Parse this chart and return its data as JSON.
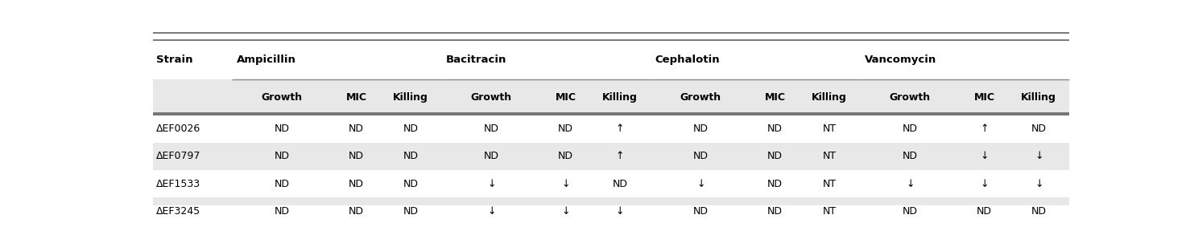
{
  "figsize": [
    14.78,
    2.88
  ],
  "dpi": 100,
  "bg_color": "#ffffff",
  "gray_row_color": "#e8e8e8",
  "white_row_color": "#ffffff",
  "subheader_bg": "#e8e8e8",
  "antibiotic_groups": [
    {
      "label": "Ampicillin",
      "subheaders": [
        "Growth",
        "MIC",
        "Killing"
      ]
    },
    {
      "label": "Bacitracin",
      "subheaders": [
        "Growth",
        "MIC",
        "Killing"
      ]
    },
    {
      "label": "Cephalotin",
      "subheaders": [
        "Growth",
        "MIC",
        "Killing"
      ]
    },
    {
      "label": "Vancomycin",
      "subheaders": [
        "Growth",
        "MIC",
        "Killing"
      ]
    }
  ],
  "strains": [
    "ΔEF0026",
    "ΔEF0797",
    "ΔEF1533",
    "ΔEF3245"
  ],
  "table_data": [
    [
      "ND",
      "ND",
      "ND",
      "ND",
      "ND",
      "↑",
      "ND",
      "ND",
      "NT",
      "ND",
      "↑",
      "ND"
    ],
    [
      "ND",
      "ND",
      "ND",
      "ND",
      "ND",
      "↑",
      "ND",
      "ND",
      "NT",
      "ND",
      "↓",
      "↓"
    ],
    [
      "ND",
      "ND",
      "ND",
      "↓",
      "↓",
      "ND",
      "↓",
      "ND",
      "NT",
      "↓",
      "↓",
      "↓"
    ],
    [
      "ND",
      "ND",
      "ND",
      "↓",
      "↓",
      "↓",
      "ND",
      "ND",
      "NT",
      "ND",
      "ND",
      "ND"
    ]
  ],
  "col_header_fontsize": 9,
  "antibiotic_fontsize": 9.5,
  "strain_fontsize": 9,
  "data_fontsize": 9,
  "font_weight_header": "bold",
  "line_color": "#555555",
  "line_color_group": "#888888"
}
